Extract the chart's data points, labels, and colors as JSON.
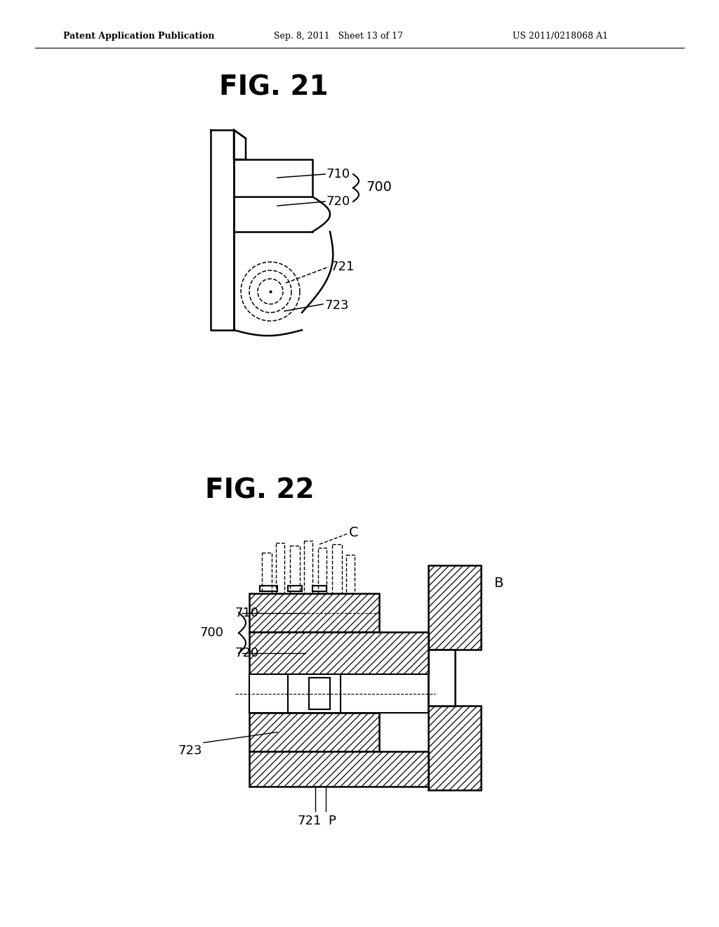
{
  "bg_color": "#ffffff",
  "header_left": "Patent Application Publication",
  "header_mid": "Sep. 8, 2011   Sheet 13 of 17",
  "header_right": "US 2011/0218068 A1",
  "fig21_title": "FIG. 21",
  "fig22_title": "FIG. 22",
  "labels": {
    "700": "700",
    "710": "710",
    "720": "720",
    "721": "721",
    "723": "723",
    "C": "C",
    "B": "B",
    "P": "P"
  }
}
